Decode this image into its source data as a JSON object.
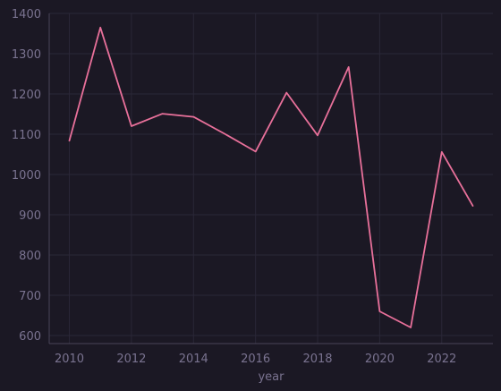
{
  "chart_data": {
    "type": "line",
    "title": "",
    "xlabel": "year",
    "ylabel": "",
    "xlim": [
      2009.35,
      2023.65
    ],
    "ylim": [
      580,
      1400
    ],
    "x_ticks": [
      2010,
      2012,
      2014,
      2016,
      2018,
      2020,
      2022
    ],
    "y_ticks": [
      600,
      700,
      800,
      900,
      1000,
      1100,
      1200,
      1300,
      1400
    ],
    "grid": true,
    "legend": "none",
    "series": [
      {
        "color": "#e8709a",
        "x": [
          2010,
          2011,
          2012,
          2013,
          2014,
          2015,
          2016,
          2017,
          2018,
          2019,
          2020,
          2021,
          2022,
          2023
        ],
        "y": [
          1084,
          1365,
          1120,
          1151,
          1143,
          1101,
          1057,
          1203,
          1097,
          1267,
          660,
          620,
          1056,
          922
        ]
      }
    ],
    "colors": {
      "background": "#1b1824",
      "grid": "#2a2737",
      "axis": "#4a4558",
      "text": "#7a7390"
    }
  }
}
